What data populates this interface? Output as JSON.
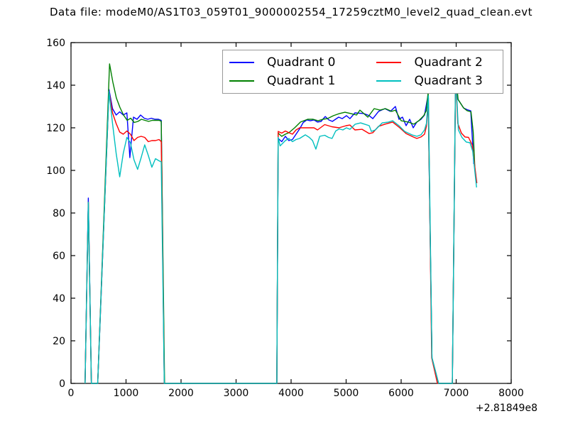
{
  "title": "Data file: modeM0/AS1T03_059T01_9000002554_17259cztM0_level2_quad_clean.evt",
  "legend": {
    "items": [
      {
        "label": "Quadrant 0",
        "color": "#0000ff"
      },
      {
        "label": "Quadrant 1",
        "color": "#008000"
      },
      {
        "label": "Quadrant 2",
        "color": "#ff0000"
      },
      {
        "label": "Quadrant 3",
        "color": "#00bfbf"
      }
    ]
  },
  "chart_data": {
    "type": "line",
    "title": "Data file: modeM0/AS1T03_059T01_9000002554_17259cztM0_level2_quad_clean.evt",
    "xlabel": "",
    "ylabel": "",
    "xlim": [
      0,
      8000
    ],
    "ylim": [
      0,
      160
    ],
    "x_ticks": [
      0,
      1000,
      2000,
      3000,
      4000,
      5000,
      6000,
      7000,
      8000
    ],
    "y_ticks": [
      0,
      20,
      40,
      60,
      80,
      100,
      120,
      140,
      160
    ],
    "x_offset_label": "+2.81849e8",
    "grid": false,
    "legend_position": "upper center, 2 columns",
    "series": [
      {
        "name": "Quadrant 0",
        "color": "#0000ff",
        "points": [
          [
            255,
            0
          ],
          [
            315,
            87
          ],
          [
            370,
            0
          ],
          [
            485,
            0
          ],
          [
            690,
            138
          ],
          [
            755,
            129
          ],
          [
            820,
            126
          ],
          [
            885,
            127.5
          ],
          [
            950,
            126
          ],
          [
            1015,
            127
          ],
          [
            1070,
            106
          ],
          [
            1135,
            125
          ],
          [
            1200,
            124
          ],
          [
            1265,
            126
          ],
          [
            1330,
            124.5
          ],
          [
            1395,
            124
          ],
          [
            1460,
            124.5
          ],
          [
            1525,
            124
          ],
          [
            1590,
            124
          ],
          [
            1640,
            123.5
          ],
          [
            1695,
            0
          ],
          [
            3740,
            0
          ],
          [
            3765,
            115
          ],
          [
            3830,
            113.5
          ],
          [
            3895,
            116
          ],
          [
            3960,
            114
          ],
          [
            4025,
            114.5
          ],
          [
            4090,
            117
          ],
          [
            4155,
            119.5
          ],
          [
            4220,
            122.5
          ],
          [
            4285,
            123.7
          ],
          [
            4350,
            123.3
          ],
          [
            4415,
            123.7
          ],
          [
            4480,
            122.7
          ],
          [
            4545,
            123
          ],
          [
            4620,
            125.3
          ],
          [
            4685,
            123.7
          ],
          [
            4750,
            123
          ],
          [
            4865,
            125
          ],
          [
            4930,
            124.3
          ],
          [
            5005,
            125.7
          ],
          [
            5070,
            124.3
          ],
          [
            5160,
            127
          ],
          [
            5320,
            126.7
          ],
          [
            5420,
            125.7
          ],
          [
            5485,
            124.3
          ],
          [
            5590,
            127.7
          ],
          [
            5705,
            129
          ],
          [
            5805,
            127.7
          ],
          [
            5895,
            130
          ],
          [
            5960,
            124
          ],
          [
            6025,
            125
          ],
          [
            6090,
            121
          ],
          [
            6155,
            124
          ],
          [
            6220,
            120
          ],
          [
            6285,
            122.7
          ],
          [
            6360,
            124
          ],
          [
            6425,
            126
          ],
          [
            6490,
            135.5
          ],
          [
            6560,
            12
          ],
          [
            6680,
            0
          ],
          [
            6930,
            0
          ],
          [
            6990,
            144.5
          ],
          [
            7030,
            133.5
          ],
          [
            7135,
            129.3
          ],
          [
            7200,
            128.5
          ],
          [
            7265,
            128
          ],
          [
            7320,
            103
          ]
        ]
      },
      {
        "name": "Quadrant 1",
        "color": "#008000",
        "points": [
          [
            255,
            0
          ],
          [
            315,
            85
          ],
          [
            370,
            0
          ],
          [
            485,
            0
          ],
          [
            700,
            150
          ],
          [
            760,
            141.5
          ],
          [
            825,
            134
          ],
          [
            890,
            129.5
          ],
          [
            955,
            126
          ],
          [
            1020,
            123.5
          ],
          [
            1085,
            124.5
          ],
          [
            1150,
            122.5
          ],
          [
            1215,
            123
          ],
          [
            1280,
            124
          ],
          [
            1345,
            123.5
          ],
          [
            1410,
            123
          ],
          [
            1475,
            123.5
          ],
          [
            1540,
            123.5
          ],
          [
            1605,
            123.5
          ],
          [
            1640,
            123
          ],
          [
            1700,
            0
          ],
          [
            3740,
            0
          ],
          [
            3765,
            117.5
          ],
          [
            3830,
            116
          ],
          [
            3895,
            117
          ],
          [
            3960,
            117.7
          ],
          [
            4065,
            120
          ],
          [
            4170,
            122.7
          ],
          [
            4300,
            124
          ],
          [
            4400,
            124
          ],
          [
            4490,
            123.3
          ],
          [
            4575,
            124
          ],
          [
            4660,
            124.3
          ],
          [
            4770,
            125.7
          ],
          [
            4880,
            126.7
          ],
          [
            4980,
            127.3
          ],
          [
            5085,
            126.7
          ],
          [
            5190,
            126
          ],
          [
            5250,
            128.3
          ],
          [
            5395,
            125
          ],
          [
            5510,
            129
          ],
          [
            5615,
            128.3
          ],
          [
            5715,
            129
          ],
          [
            5830,
            127.7
          ],
          [
            5895,
            128.3
          ],
          [
            6000,
            123.3
          ],
          [
            6130,
            122.7
          ],
          [
            6230,
            121.7
          ],
          [
            6320,
            123.3
          ],
          [
            6410,
            125.7
          ],
          [
            6455,
            128
          ],
          [
            6490,
            136.5
          ],
          [
            6560,
            12
          ],
          [
            6680,
            0
          ],
          [
            6930,
            0
          ],
          [
            6990,
            146.5
          ],
          [
            7035,
            133.3
          ],
          [
            7135,
            129.3
          ],
          [
            7200,
            128
          ],
          [
            7270,
            127.5
          ],
          [
            7310,
            118
          ],
          [
            7340,
            100.5
          ]
        ]
      },
      {
        "name": "Quadrant 2",
        "color": "#ff0000",
        "points": [
          [
            255,
            0
          ],
          [
            315,
            85
          ],
          [
            370,
            0
          ],
          [
            485,
            0
          ],
          [
            690,
            137
          ],
          [
            755,
            127
          ],
          [
            820,
            122
          ],
          [
            885,
            118
          ],
          [
            950,
            117
          ],
          [
            1015,
            118.5
          ],
          [
            1080,
            117
          ],
          [
            1145,
            114
          ],
          [
            1210,
            115.5
          ],
          [
            1275,
            116
          ],
          [
            1340,
            115.5
          ],
          [
            1405,
            113.5
          ],
          [
            1470,
            114
          ],
          [
            1535,
            114
          ],
          [
            1600,
            114.5
          ],
          [
            1640,
            113.5
          ],
          [
            1695,
            0
          ],
          [
            3740,
            0
          ],
          [
            3765,
            118.3
          ],
          [
            3830,
            117.5
          ],
          [
            3895,
            118.5
          ],
          [
            3960,
            117.7
          ],
          [
            4025,
            117
          ],
          [
            4090,
            119
          ],
          [
            4155,
            120
          ],
          [
            4285,
            120
          ],
          [
            4415,
            120
          ],
          [
            4480,
            119
          ],
          [
            4610,
            121.5
          ],
          [
            4740,
            120.5
          ],
          [
            4870,
            120
          ],
          [
            5000,
            121
          ],
          [
            5070,
            121.3
          ],
          [
            5160,
            119
          ],
          [
            5290,
            119.3
          ],
          [
            5420,
            117.3
          ],
          [
            5485,
            117.7
          ],
          [
            5590,
            120.7
          ],
          [
            5705,
            121.7
          ],
          [
            5845,
            122.7
          ],
          [
            5975,
            120
          ],
          [
            6090,
            117.3
          ],
          [
            6220,
            115.7
          ],
          [
            6285,
            115
          ],
          [
            6360,
            115.7
          ],
          [
            6425,
            117
          ],
          [
            6460,
            120.7
          ],
          [
            6495,
            134
          ],
          [
            6555,
            12
          ],
          [
            6660,
            0
          ],
          [
            6930,
            0
          ],
          [
            6990,
            143.5
          ],
          [
            7030,
            122
          ],
          [
            7095,
            117.5
          ],
          [
            7160,
            115.7
          ],
          [
            7225,
            115.5
          ],
          [
            7290,
            112
          ],
          [
            7375,
            94
          ]
        ]
      },
      {
        "name": "Quadrant 3",
        "color": "#00bfbf",
        "points": [
          [
            255,
            0
          ],
          [
            315,
            85
          ],
          [
            370,
            0
          ],
          [
            485,
            0
          ],
          [
            690,
            137
          ],
          [
            755,
            122
          ],
          [
            820,
            108
          ],
          [
            885,
            97
          ],
          [
            950,
            108
          ],
          [
            1015,
            115.5
          ],
          [
            1080,
            113
          ],
          [
            1145,
            105
          ],
          [
            1210,
            100.5
          ],
          [
            1275,
            106
          ],
          [
            1340,
            112
          ],
          [
            1405,
            107
          ],
          [
            1470,
            101.5
          ],
          [
            1535,
            105.5
          ],
          [
            1600,
            104.5
          ],
          [
            1640,
            104
          ],
          [
            1695,
            0
          ],
          [
            3740,
            0
          ],
          [
            3765,
            115.5
          ],
          [
            3800,
            111.5
          ],
          [
            3895,
            114
          ],
          [
            3960,
            115
          ],
          [
            4025,
            113.5
          ],
          [
            4090,
            114.5
          ],
          [
            4155,
            115
          ],
          [
            4260,
            116.7
          ],
          [
            4330,
            115.5
          ],
          [
            4390,
            114
          ],
          [
            4450,
            110
          ],
          [
            4520,
            116
          ],
          [
            4610,
            116.5
          ],
          [
            4680,
            115.5
          ],
          [
            4745,
            115
          ],
          [
            4810,
            118.5
          ],
          [
            4875,
            119.5
          ],
          [
            4940,
            119
          ],
          [
            5005,
            120
          ],
          [
            5070,
            119.3
          ],
          [
            5165,
            121.7
          ],
          [
            5265,
            122.3
          ],
          [
            5420,
            121
          ],
          [
            5460,
            118.3
          ],
          [
            5530,
            119
          ],
          [
            5655,
            122.3
          ],
          [
            5770,
            122.7
          ],
          [
            5845,
            123.3
          ],
          [
            5960,
            121
          ],
          [
            6065,
            118.3
          ],
          [
            6195,
            116.7
          ],
          [
            6285,
            116
          ],
          [
            6360,
            116.7
          ],
          [
            6425,
            119
          ],
          [
            6460,
            122
          ],
          [
            6495,
            135
          ],
          [
            6560,
            12
          ],
          [
            6680,
            0
          ],
          [
            6930,
            0
          ],
          [
            6990,
            146
          ],
          [
            7040,
            119
          ],
          [
            7105,
            115.5
          ],
          [
            7185,
            113.3
          ],
          [
            7250,
            113
          ],
          [
            7300,
            109
          ],
          [
            7370,
            92
          ]
        ]
      }
    ]
  }
}
